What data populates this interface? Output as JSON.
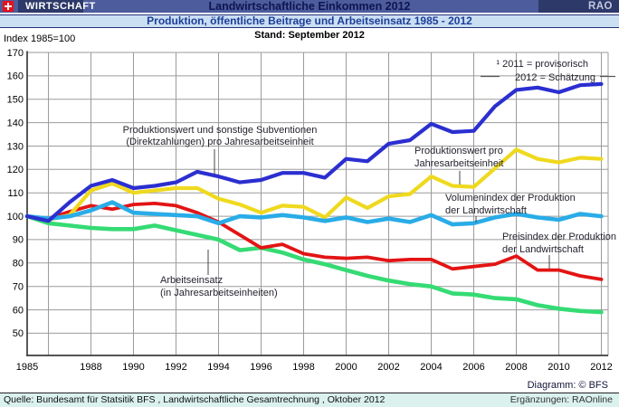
{
  "header": {
    "section_label": "WIRTSCHAFT",
    "title": "Landwirtschaftliche Einkommen 2012",
    "brand": "RAO",
    "subtitle": "Produktion, öffentliche Beitrage und Arbeitseinsatz 1985 - 2012",
    "flag_color": "#e8111b",
    "bar_color": "#4d5c9c",
    "box_color": "#2d3968"
  },
  "meta": {
    "status_line": "Stand: September 2012",
    "axis_unit_label": "Index 1985=100",
    "diagram_credit": "Diagramm: © BFS"
  },
  "footer": {
    "source": "Quelle: Bundesamt für Statsitik BFS , Landwirtschaftliche Gesamtrechnung , Oktober 2012",
    "additions": "Ergänzungen: RAOnline"
  },
  "chart_data": {
    "type": "line",
    "title": "Landwirtschaftliche Einkommen 2012",
    "subtitle": "Produktion, öffentliche Beitrage und Arbeitseinsatz 1985 - 2012",
    "xlabel": "",
    "ylabel": "Index 1985=100",
    "ylim": [
      40,
      170
    ],
    "yticks": [
      50,
      60,
      70,
      80,
      90,
      100,
      110,
      120,
      130,
      140,
      150,
      160,
      170
    ],
    "grid": true,
    "legend_position": "inline-annotations",
    "footnote": [
      "¹ 2011 = provisorisch",
      "2012 = Schätzung"
    ],
    "x": [
      1985,
      1986,
      1987,
      1988,
      1989,
      1990,
      1991,
      1992,
      1993,
      1994,
      1995,
      1996,
      1997,
      1998,
      1999,
      2000,
      2001,
      2002,
      2003,
      2004,
      2005,
      2006,
      2007,
      2008,
      2009,
      2010,
      2011,
      2012
    ],
    "xtick_labels": [
      1985,
      1988,
      1990,
      1992,
      1994,
      1996,
      1998,
      2000,
      2002,
      2004,
      2006,
      2008,
      2010,
      2012
    ],
    "series": [
      {
        "id": "arbeitseinsatz",
        "name": "Arbeitseinsatz (in Jahresarbeitseinheiten)",
        "label_lines": [
          "Arbeitseinsatz",
          "(in Jahresarbeitseinheiten)"
        ],
        "color": "#35db74",
        "stroke_width": 4.6,
        "values": [
          100,
          97,
          96,
          95,
          94.5,
          94.5,
          96,
          94,
          92,
          90,
          85.5,
          86.5,
          84.5,
          81.5,
          79.5,
          77,
          74.5,
          72.5,
          71,
          70,
          67,
          66.5,
          65,
          64.5,
          62,
          60.5,
          59.5,
          59
        ]
      },
      {
        "id": "preisindex",
        "name": "Preisindex der Produktion der Landwirtschaft",
        "label_lines": [
          "Preisindex der Produktion",
          "der Landwirtschaft"
        ],
        "color": "#e31414",
        "stroke_width": 3.8,
        "values": [
          100,
          99,
          102,
          104.5,
          103,
          105,
          105.5,
          104.5,
          101.5,
          97.5,
          92,
          86.5,
          88,
          84,
          82.5,
          82,
          82.5,
          81,
          81.5,
          81.5,
          77.5,
          78.5,
          79.5,
          83,
          77,
          77,
          74.5,
          73
        ]
      },
      {
        "id": "produktionswert",
        "name": "Produktionswert pro Jahresarbeitseinheit",
        "label_lines": [
          "Produktionswert pro",
          "Jahresarbeitseinheit"
        ],
        "color": "#efd91e",
        "stroke_width": 4.2,
        "values": [
          100,
          98.5,
          100.5,
          111,
          114,
          110,
          111,
          112,
          112,
          107.5,
          105,
          101.5,
          104.5,
          104,
          99.5,
          108,
          103.5,
          108.5,
          109.5,
          117,
          113,
          112.5,
          120.5,
          128.5,
          124.5,
          123,
          125,
          124.5
        ]
      },
      {
        "id": "volumenindex",
        "name": "Volumenindex der Produktion der Landwirtschaft",
        "label_lines": [
          "Volumenindex der Produktion",
          "der Landwirtschaft"
        ],
        "color": "#29ace7",
        "stroke_width": 4.6,
        "values": [
          100,
          99,
          100,
          102.5,
          106,
          101.5,
          101,
          100.5,
          100,
          97,
          100,
          99.5,
          100.5,
          99.5,
          98,
          99.5,
          97.5,
          99,
          97.5,
          100.5,
          96.5,
          97,
          99.5,
          101,
          99.5,
          98.5,
          101,
          100
        ]
      },
      {
        "id": "subventionen",
        "name": "Produktionswert und sonstige Subventionen (Direktzahlungen) pro Jahresarbeitseinheit",
        "label_lines": [
          "Produktionswert und sonstige Subventionen",
          "(Direktzahlungen) pro Jahresarbeitseinheit"
        ],
        "color": "#2b2fd0",
        "stroke_width": 4.2,
        "values": [
          100,
          98,
          106,
          113,
          115.5,
          112,
          113,
          114.5,
          119,
          117,
          114.5,
          115.5,
          118.5,
          118.5,
          116.5,
          124.5,
          123.5,
          131,
          132.5,
          139.5,
          136,
          136.5,
          147,
          154,
          155,
          153,
          156,
          156.5
        ]
      }
    ]
  }
}
